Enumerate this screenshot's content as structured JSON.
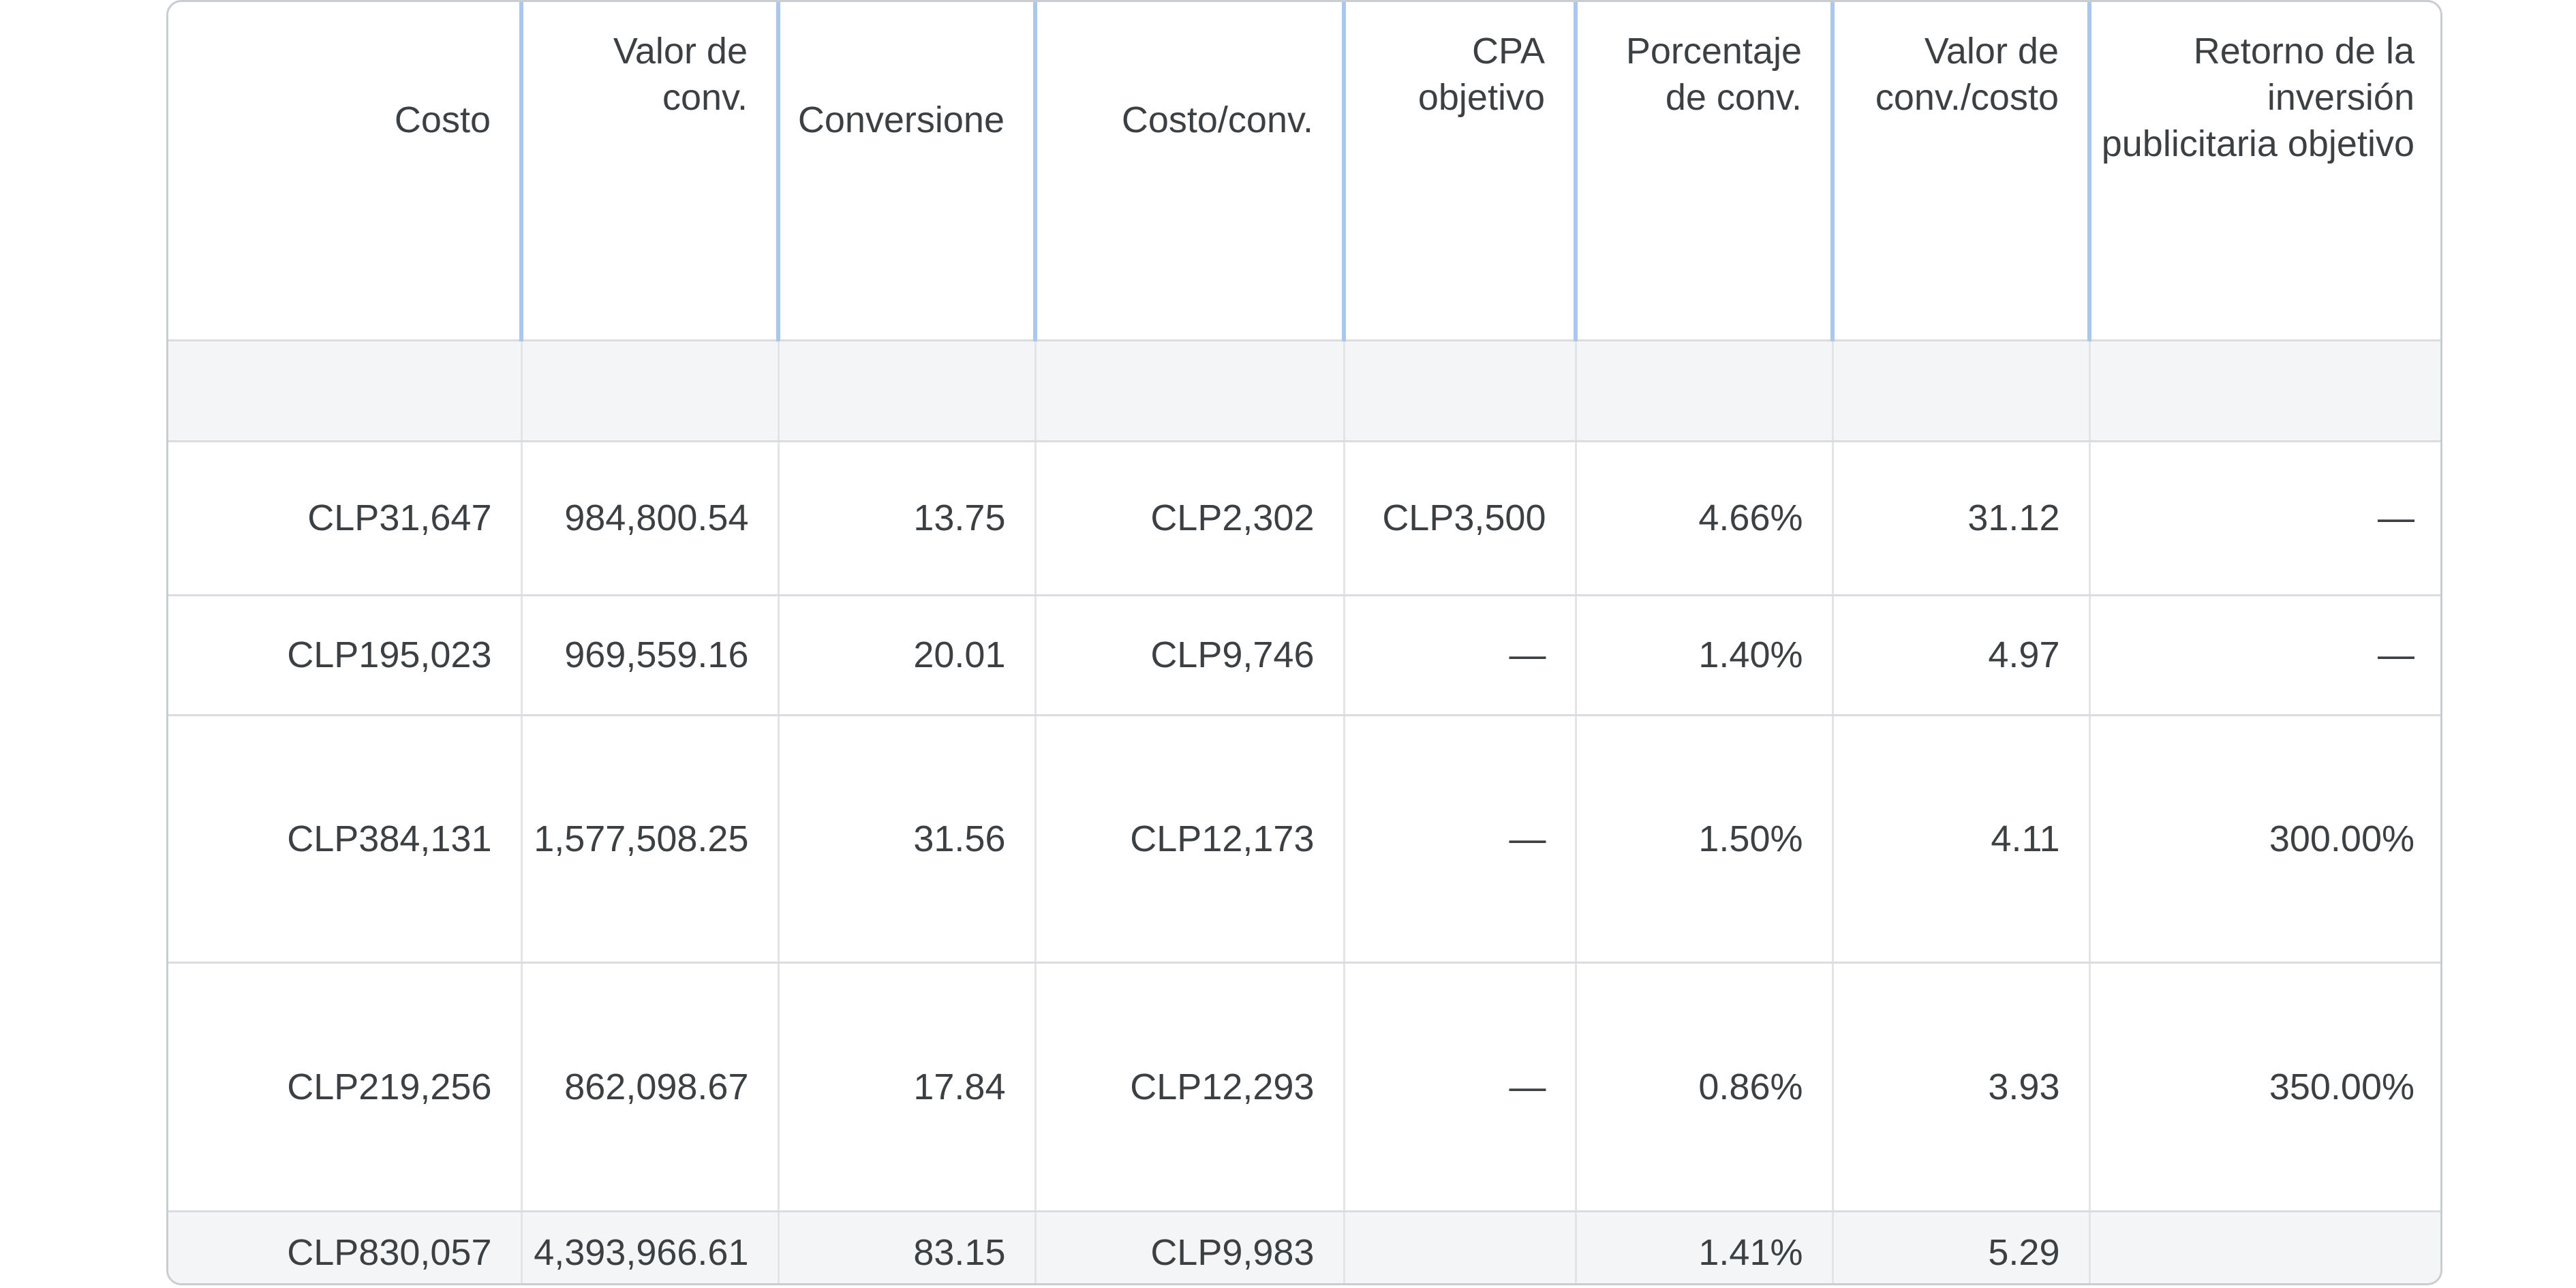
{
  "table": {
    "headers": [
      "Costo",
      "Valor de conv.",
      "Conversione",
      "Costo/conv.",
      "CPA objetivo",
      "Porcentaje de conv.",
      "Valor de conv./costo",
      "Retorno de la inversión publicitaria objetivo"
    ],
    "rows": [
      [
        "CLP31,647",
        "984,800.54",
        "13.75",
        "CLP2,302",
        "CLP3,500",
        "4.66%",
        "31.12",
        "—"
      ],
      [
        "CLP195,023",
        "969,559.16",
        "20.01",
        "CLP9,746",
        "—",
        "1.40%",
        "4.97",
        "—"
      ],
      [
        "CLP384,131",
        "1,577,508.25",
        "31.56",
        "CLP12,173",
        "—",
        "1.50%",
        "4.11",
        "300.00%"
      ],
      [
        "CLP219,256",
        "862,098.67",
        "17.84",
        "CLP12,293",
        "—",
        "0.86%",
        "3.93",
        "350.00%"
      ]
    ],
    "total": [
      "CLP830,057",
      "4,393,966.61",
      "83.15",
      "CLP9,983",
      "",
      "1.41%",
      "5.29",
      ""
    ]
  }
}
